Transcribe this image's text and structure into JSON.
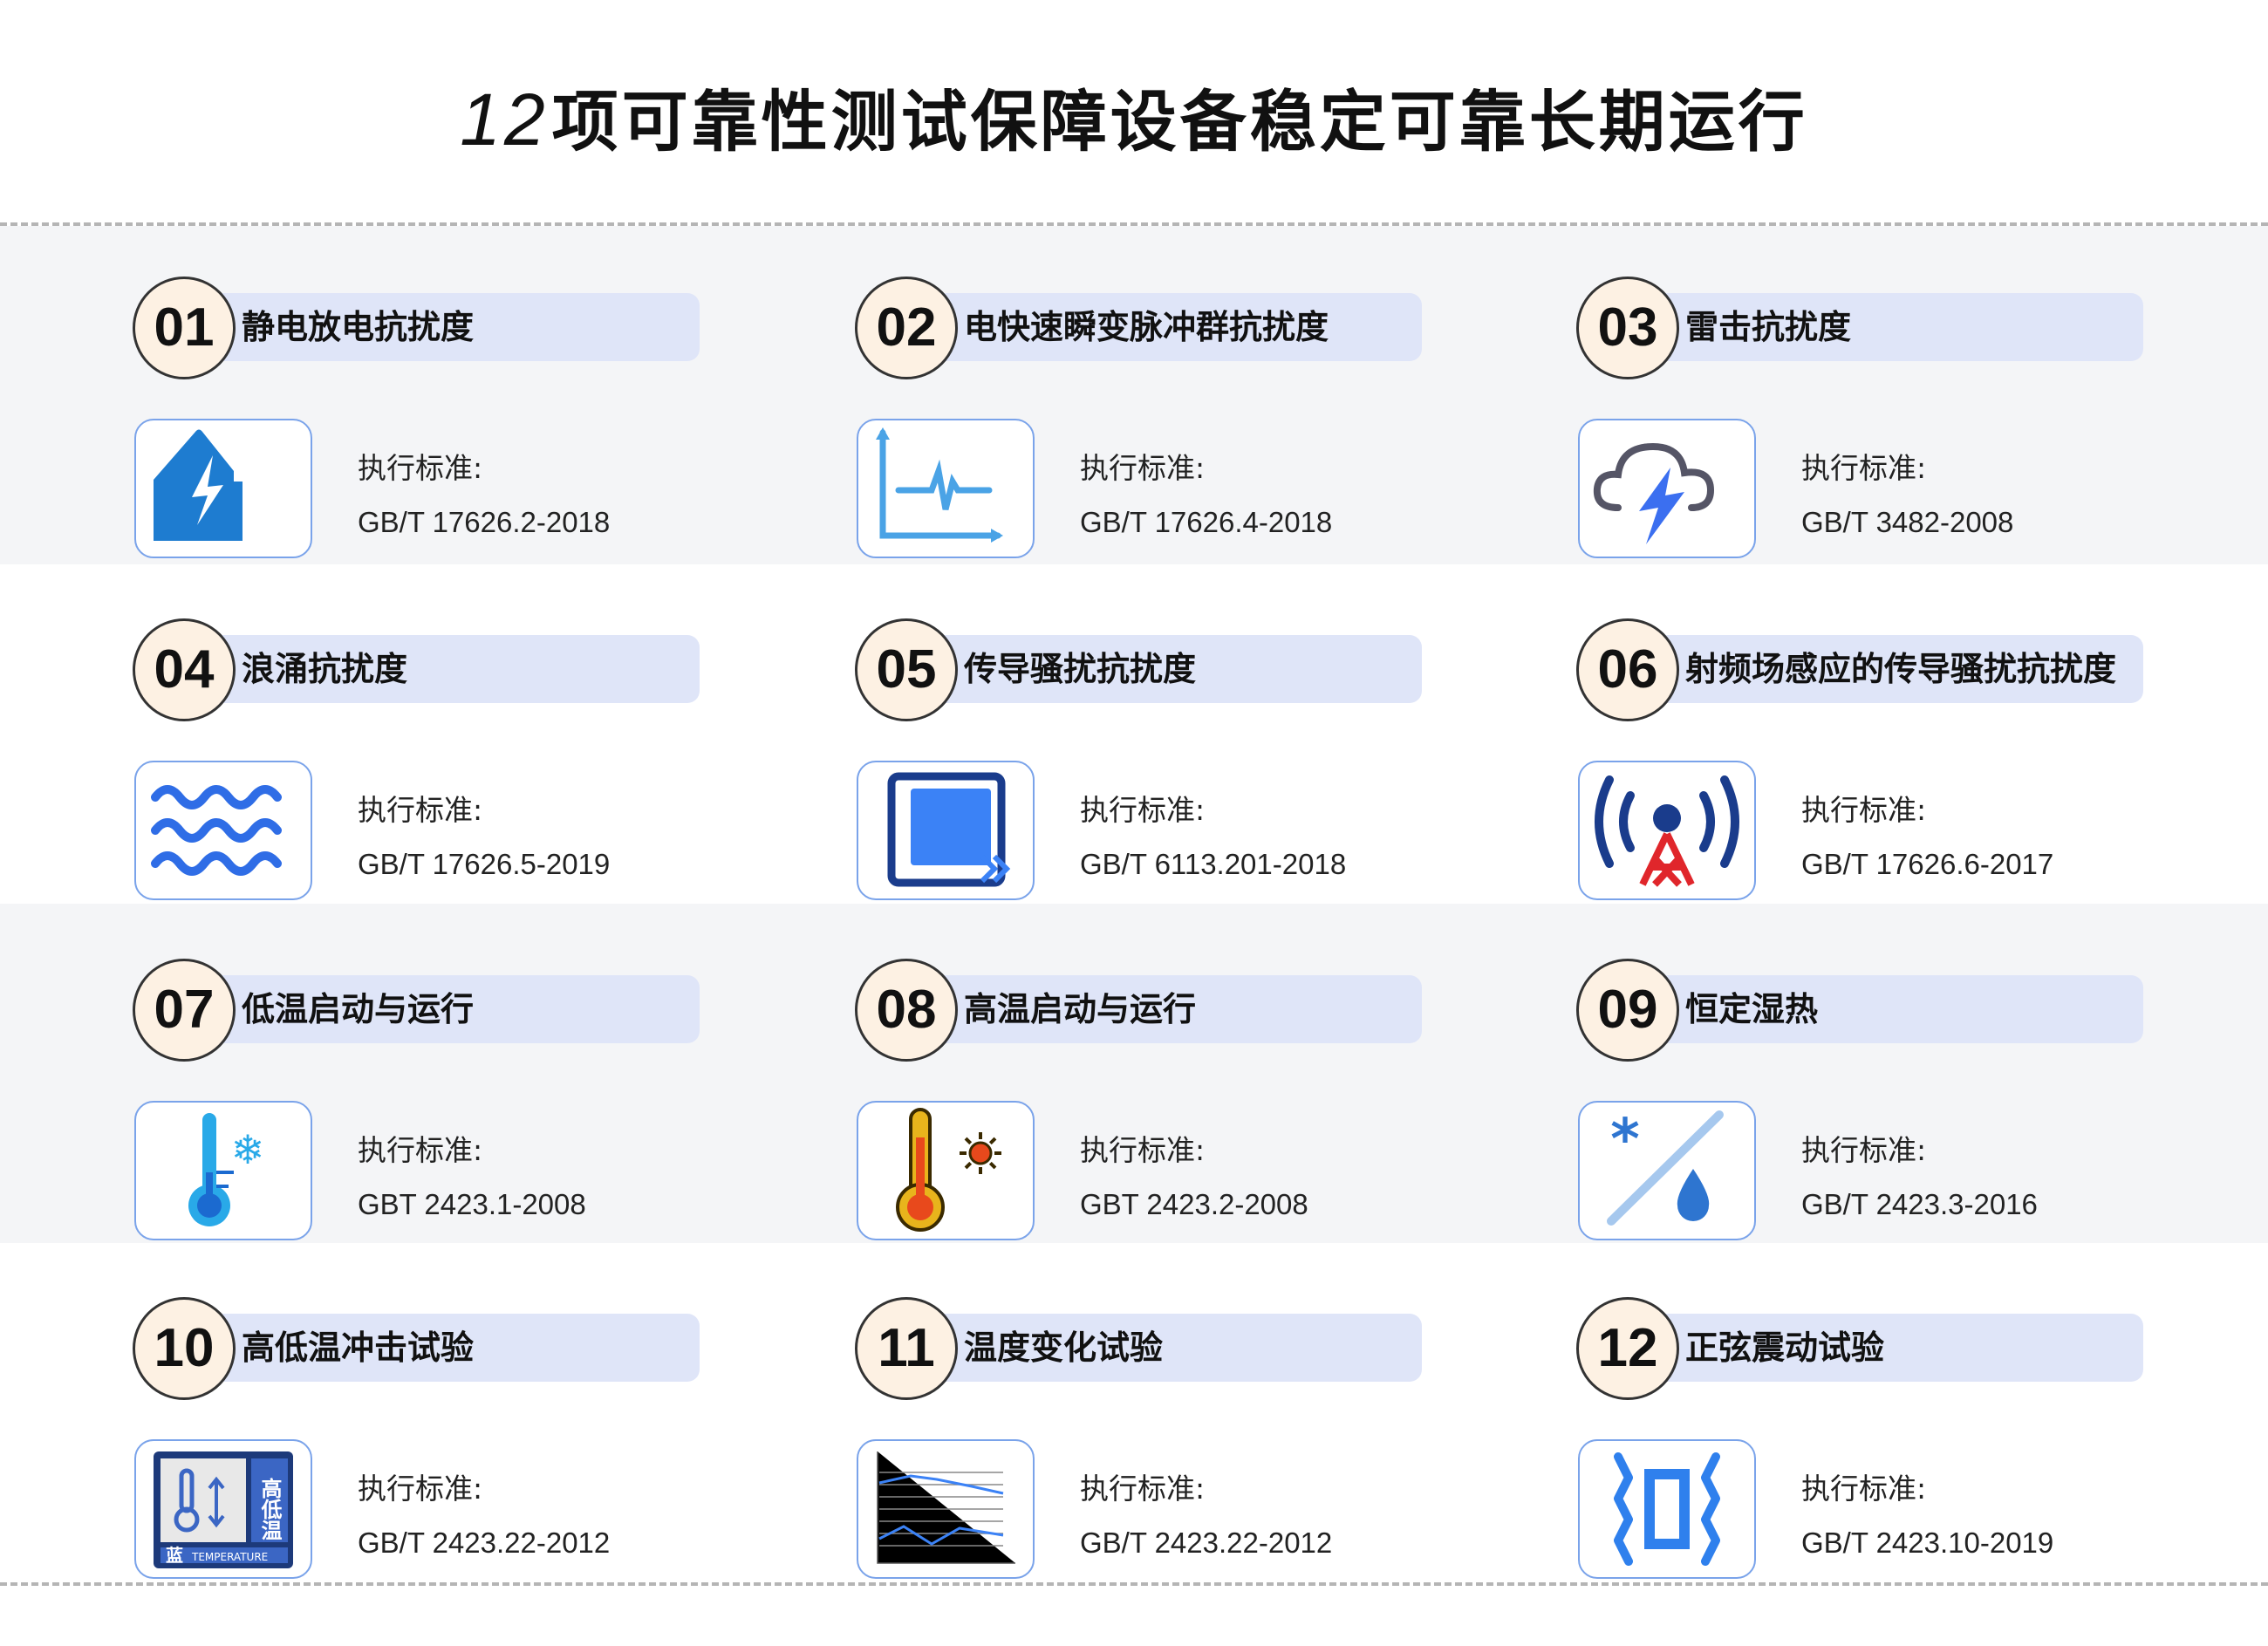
{
  "title": {
    "number": "12",
    "text": "项可靠性测试保障设备稳定可靠长期运行"
  },
  "standard_label": "执行标准:",
  "colors": {
    "band": "#f4f5f7",
    "bar": "#dfe5f8",
    "circle": "#fdf1e3",
    "icon_blue": "#1e7cd0"
  },
  "items": [
    {
      "num": "01",
      "name": "静电放电抗扰度",
      "standard": "GB/T 17626.2-2018",
      "icon": "static-discharge-icon"
    },
    {
      "num": "02",
      "name": "电快速瞬变脉冲群抗扰度",
      "standard": "GB/T 17626.4-2018",
      "icon": "pulse-chart-icon"
    },
    {
      "num": "03",
      "name": "雷击抗扰度",
      "standard": "GB/T 3482-2008",
      "icon": "thunder-cloud-icon"
    },
    {
      "num": "04",
      "name": "浪涌抗扰度",
      "standard": "GB/T 17626.5-2019",
      "icon": "waves-icon"
    },
    {
      "num": "05",
      "name": "传导骚扰抗扰度",
      "standard": "GB/T 6113.201-2018",
      "icon": "conduction-square-icon"
    },
    {
      "num": "06",
      "name": "射频场感应的传导骚扰抗扰度",
      "standard": "GB/T 17626.6-2017",
      "icon": "radio-tower-icon"
    },
    {
      "num": "07",
      "name": "低温启动与运行",
      "standard": "GBT 2423.1-2008",
      "icon": "cold-thermometer-icon"
    },
    {
      "num": "08",
      "name": "高温启动与运行",
      "standard": "GBT 2423.2-2008",
      "icon": "hot-thermometer-icon"
    },
    {
      "num": "09",
      "name": "恒定湿热",
      "standard": "GB/T 2423.3-2016",
      "icon": "humidity-icon"
    },
    {
      "num": "10",
      "name": "高低温冲击试验",
      "standard": "GB/T 2423.22-2012",
      "icon": "temperature-shock-icon",
      "icon_text": {
        "side": "高低温",
        "corner": "蓝",
        "bottom": "TEMPERATURE"
      }
    },
    {
      "num": "11",
      "name": "温度变化试验",
      "standard": "GB/T 2423.22-2012",
      "icon": "line-chart-icon"
    },
    {
      "num": "12",
      "name": "正弦震动试验",
      "standard": "GB/T 2423.10-2019",
      "icon": "vibration-icon"
    }
  ]
}
